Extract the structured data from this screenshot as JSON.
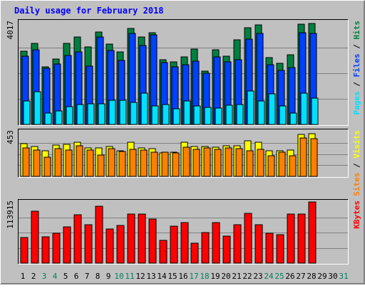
{
  "chart_data": {
    "type": "bar",
    "title": "Daily usage for February 2018",
    "colors": {
      "background": "#C0C0C0",
      "frame_top_left": "#FFFFFF",
      "frame_bottom_right": "#808080",
      "title": "#0000FF",
      "hits": "#008040",
      "files": "#0040FF",
      "pages": "#00E0FF",
      "visits": "#FFFF00",
      "sites": "#FF8000",
      "kbytes": "#FF0000",
      "weekend_label": "#00805C",
      "weekday_label": "#000000",
      "gridline": "#808080"
    },
    "days": [
      "1",
      "2",
      "3",
      "4",
      "5",
      "6",
      "7",
      "8",
      "9",
      "10",
      "11",
      "12",
      "13",
      "14",
      "15",
      "16",
      "17",
      "18",
      "19",
      "20",
      "21",
      "22",
      "23",
      "24",
      "25",
      "26",
      "27",
      "28",
      "29",
      "30",
      "31"
    ],
    "weekend_days": [
      "3",
      "4",
      "10",
      "11",
      "17",
      "18",
      "24",
      "25",
      "31"
    ],
    "panels": [
      {
        "id": "hits_files_pages",
        "max_label": "4017",
        "ymax": 4017,
        "side_labels": [
          {
            "text": "Pages",
            "color_key": "pages"
          },
          {
            "text": " / ",
            "color_key": "weekday_label"
          },
          {
            "text": "Files",
            "color_key": "files"
          },
          {
            "text": " / ",
            "color_key": "weekday_label"
          },
          {
            "text": "Hits",
            "color_key": "hits"
          }
        ],
        "series": [
          {
            "name": "Hits",
            "color_key": "hits",
            "values": [
              2880,
              3180,
              2260,
              2580,
              3180,
              3420,
              3030,
              3640,
              3150,
              2850,
              3760,
              3430,
              3610,
              2540,
              2450,
              2640,
              2970,
              2080,
              2920,
              2670,
              3330,
              3800,
              3900,
              2620,
              2400,
              2730,
              3920,
              3950,
              0,
              0,
              0
            ]
          },
          {
            "name": "Files",
            "color_key": "files",
            "values": [
              2670,
              2940,
              2190,
              2380,
              2710,
              2840,
              2290,
              3430,
              2910,
              2520,
              3570,
              3110,
              3520,
              2420,
              2270,
              2340,
              2480,
              2010,
              2640,
              2450,
              2540,
              3340,
              3570,
              2340,
              2110,
              2230,
              3600,
              3570,
              0,
              0,
              0
            ]
          },
          {
            "name": "Pages",
            "color_key": "pages",
            "values": [
              930,
              1270,
              460,
              530,
              700,
              780,
              800,
              810,
              960,
              940,
              860,
              1230,
              730,
              790,
              620,
              920,
              730,
              670,
              650,
              760,
              780,
              1310,
              920,
              1190,
              720,
              460,
              1230,
              1040,
              0,
              0,
              0
            ]
          }
        ]
      },
      {
        "id": "visits_sites",
        "max_label": "453",
        "ymax": 453,
        "side_labels": [
          {
            "text": "Sites",
            "color_key": "sites"
          },
          {
            "text": " / ",
            "color_key": "weekday_label"
          },
          {
            "text": "Visits",
            "color_key": "visits"
          }
        ],
        "series": [
          {
            "name": "Visits",
            "color_key": "visits",
            "values": [
              328,
              302,
              258,
              314,
              322,
              348,
              288,
              287,
              302,
              260,
              347,
              288,
              277,
              240,
              242,
              342,
              299,
              304,
              293,
              310,
              309,
              358,
              342,
              259,
              256,
              264,
              423,
              433,
              0,
              0,
              0
            ]
          },
          {
            "name": "Sites",
            "color_key": "sites",
            "values": [
              290,
              263,
              194,
              279,
              264,
              310,
              263,
              216,
              280,
              250,
              271,
              265,
              243,
              247,
              234,
              294,
              271,
              290,
              276,
              285,
              279,
              261,
              273,
              210,
              246,
              207,
              391,
              384,
              0,
              0,
              0
            ]
          }
        ]
      },
      {
        "id": "kbytes",
        "max_label": "113915",
        "ymax": 113915,
        "side_labels": [
          {
            "text": "KBytes",
            "color_key": "kbytes"
          }
        ],
        "series": [
          {
            "name": "KBytes",
            "color_key": "kbytes",
            "values": [
              48000,
              97000,
              49000,
              56000,
              67000,
              90000,
              72000,
              106000,
              63000,
              70000,
              91000,
              91000,
              82000,
              43000,
              69000,
              75000,
              37000,
              57000,
              76000,
              50000,
              72000,
              93000,
              72000,
              56000,
              53000,
              92000,
              92000,
              113915,
              0,
              0,
              0
            ]
          }
        ]
      }
    ]
  }
}
